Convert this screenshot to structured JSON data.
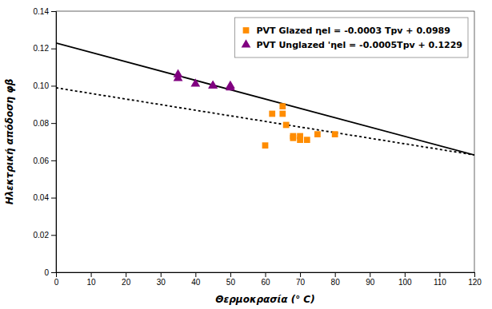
{
  "chart_data": {
    "type": "scatter",
    "xlabel": "Θερμοκρασία (° C)",
    "ylabel": "Ηλεκτρική απόδοση φβ",
    "xlim": [
      0,
      120
    ],
    "ylim": [
      0,
      0.14
    ],
    "xticks": [
      0,
      10,
      20,
      30,
      40,
      50,
      60,
      70,
      80,
      90,
      100,
      110,
      120
    ],
    "yticks": [
      0,
      0.02,
      0.04,
      0.06,
      0.08,
      {
        "value": 0.1,
        "label": "0.10"
      },
      0.12,
      0.14
    ],
    "grid": false,
    "legend": "upper right",
    "series": [
      {
        "type": "line",
        "color": "#000000",
        "line_style": "solid",
        "x": [
          0,
          120
        ],
        "values": [
          0.1229,
          0.0629
        ]
      },
      {
        "type": "line",
        "color": "#000000",
        "line_style": "dotted",
        "x": [
          0,
          120
        ],
        "values": [
          0.0989,
          0.0629
        ]
      },
      {
        "name": "PVT Glazed ηel = -0.0003 Tpv + 0.0989",
        "type": "scatter",
        "color": "#FF8C00",
        "marker": "square",
        "x": [
          60,
          62,
          65,
          65,
          66,
          68,
          68,
          70,
          70,
          72,
          75,
          80
        ],
        "values": [
          0.068,
          0.085,
          0.085,
          0.089,
          0.079,
          0.073,
          0.072,
          0.071,
          0.073,
          0.071,
          0.074,
          0.074
        ]
      },
      {
        "name": "PVT Unglazed 'ηel = -0.0005Tpv + 0.1229",
        "type": "scatter",
        "color": "#800080",
        "marker": "triangle",
        "x": [
          35,
          35,
          40,
          45,
          45,
          50,
          50
        ],
        "values": [
          0.106,
          0.104,
          0.101,
          0.1,
          0.1,
          0.1,
          0.099
        ]
      }
    ]
  }
}
